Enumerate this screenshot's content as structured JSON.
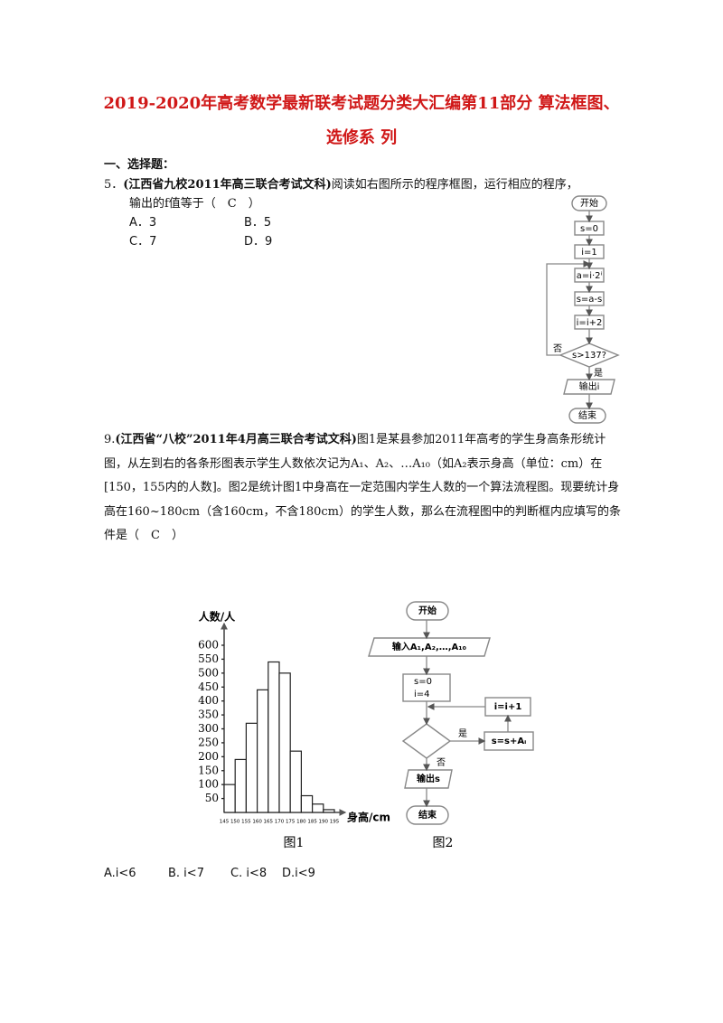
{
  "header": {
    "title": "2019-2020年高考数学最新联考试题分类大汇编第11部分 算法框图、选修系 列"
  },
  "section": "一、选择题：",
  "q5": {
    "number": "5．",
    "source": "(江西省九校2011年高三联合考试文科)",
    "stem": "阅读如右图所示的程序框图，运行相应的程序，",
    "stem2": "输出的f值等于（　C　）",
    "options": [
      "A．3",
      "B．5",
      "C．7",
      "D．9"
    ],
    "flowchart": {
      "nodes": [
        "开始",
        "s=0",
        "i=1",
        "a=i·2ⁱ",
        "s=a-s",
        "i=i+2",
        "s>137?",
        "输出i",
        "结束"
      ],
      "no": "否",
      "yes": "是"
    }
  },
  "q9": {
    "number": "9.",
    "source": "(江西省“八校”2011年4月高三联合考试文科)",
    "stem": "图1是某县参加2011年高考的学生身高条形统计图，从左到右的各条形图表示学生人数依次记为A₁、A₂、…A₁₀（如A₂表示身高（单位：cm）在[150，155内的人数]。图2是统计图1中身高在一定范围内学生人数的一个算法流程图。现要统计身高在160~180cm（含160cm，不含180cm）的学生人数，那么在流程图中的判断框内应填写的条件是（　C　）",
    "figure1": {
      "type": "bar",
      "ylabel": "人数/人",
      "xlabel": "身高/cm",
      "caption": "图1",
      "bins": [
        145,
        150,
        155,
        160,
        165,
        170,
        175,
        180,
        185,
        190,
        195
      ],
      "values": [
        100,
        190,
        320,
        440,
        540,
        500,
        220,
        60,
        30,
        10
      ],
      "ylim": [
        0,
        600
      ],
      "yticks": [
        50,
        100,
        150,
        200,
        250,
        300,
        350,
        400,
        450,
        500,
        550,
        600
      ],
      "color": "#ffffff"
    },
    "figure2": {
      "caption": "图2",
      "nodes": [
        "开始",
        "输入A₁,A₂,…,A₁₀",
        "s=0",
        "i=4",
        "i=i+1",
        "s=s+Aᵢ",
        "输出s",
        "结束"
      ],
      "yes": "是",
      "no": "否"
    },
    "options": [
      "A.i<6",
      "B. i<7",
      "C. i<8",
      "D.i<9"
    ]
  }
}
